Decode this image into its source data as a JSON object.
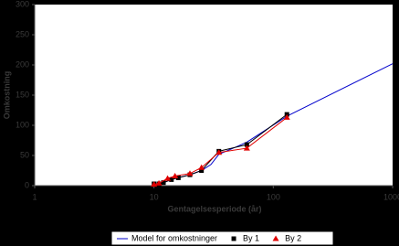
{
  "chart_data": {
    "type": "line",
    "xlabel": "Gentagelsesperiode (år)",
    "ylabel": "Omkostning",
    "xlog": true,
    "xlim": [
      1,
      1000
    ],
    "xticks": [
      1,
      10,
      100,
      1000
    ],
    "ylim": [
      0,
      300
    ],
    "yticks": [
      0,
      50,
      100,
      150,
      200,
      250,
      300
    ],
    "series": [
      {
        "name": "Model for omkostninger",
        "color": "#0000cc",
        "marker": "none",
        "x": [
          10,
          11,
          12,
          15,
          20,
          25,
          30,
          35,
          50,
          60,
          130,
          1000
        ],
        "values": [
          0,
          2,
          5,
          12,
          18,
          25,
          35,
          52,
          65,
          72,
          115,
          202
        ]
      },
      {
        "name": "By 1",
        "color": "#000000",
        "marker": "square",
        "x": [
          10,
          11,
          12,
          14,
          16,
          20,
          25,
          35,
          60,
          130
        ],
        "values": [
          3,
          3,
          5,
          10,
          13,
          18,
          25,
          57,
          68,
          118
        ]
      },
      {
        "name": "By 2",
        "color": "#e00000",
        "marker": "triangle",
        "x": [
          10,
          11,
          13,
          15,
          20,
          25,
          35,
          60,
          130
        ],
        "values": [
          2,
          4,
          12,
          16,
          20,
          30,
          55,
          62,
          113
        ]
      }
    ]
  }
}
